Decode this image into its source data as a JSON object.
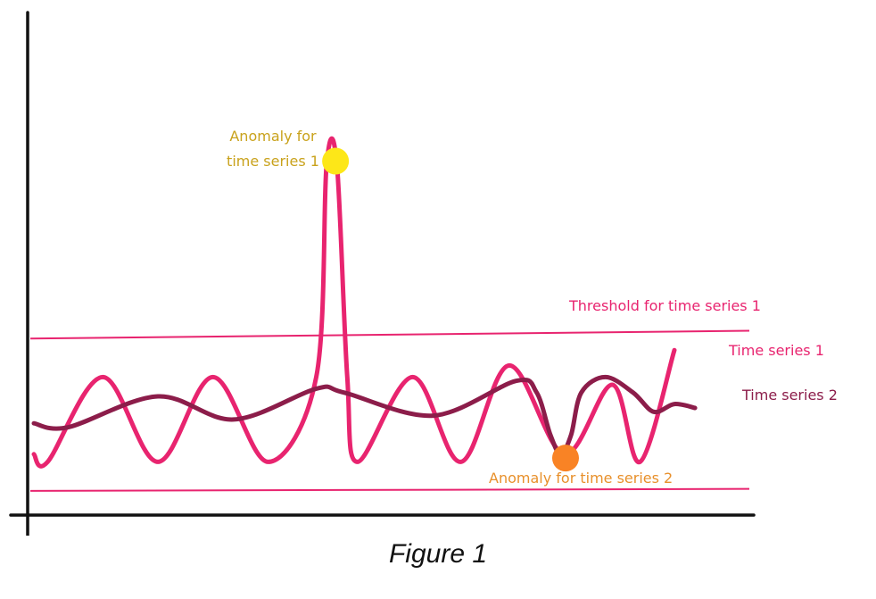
{
  "chart_data": {
    "type": "line",
    "title": "",
    "xlabel": "",
    "ylabel": "",
    "xlim": [
      0,
      100
    ],
    "ylim": [
      0,
      100
    ],
    "grid": false,
    "series": [
      {
        "name": "Time series 1",
        "color": "#e8246f",
        "x": [
          0,
          2,
          10,
          18,
          26,
          34,
          41,
          42.5,
          44,
          45.5,
          47,
          55,
          62,
          69,
          77,
          84,
          88,
          93
        ],
        "y": [
          10,
          8,
          30,
          8,
          30,
          8,
          30,
          85,
          85,
          30,
          8,
          30,
          8,
          33,
          10,
          28,
          8,
          37
        ]
      },
      {
        "name": "Time series 2",
        "color": "#8c1d4a",
        "x": [
          0,
          5,
          18,
          29,
          41,
          45,
          58,
          70,
          73,
          75,
          76.5,
          78,
          79.5,
          83,
          87,
          90,
          93,
          96
        ],
        "y": [
          18,
          17,
          25,
          19,
          27,
          26,
          20,
          29,
          26,
          15,
          10,
          15,
          26,
          30,
          26,
          21,
          23,
          22
        ]
      }
    ],
    "thresholds": [
      {
        "name": "Threshold for time series 1",
        "color": "#e8246f",
        "y": [
          40,
          42
        ]
      },
      {
        "name": "",
        "color": "#e8246f",
        "y": [
          0.5,
          1
        ]
      }
    ],
    "anomalies": [
      {
        "label": "Anomaly for time series 1",
        "label_line1": "Anomaly for",
        "label_line2": "time series 1",
        "color": "#fde718",
        "x": 43.8,
        "y": 86
      },
      {
        "label": "Anomaly for time series 2",
        "color": "#f98325",
        "x": 77.2,
        "y": 9
      }
    ],
    "annotations": {
      "threshold_label": "Threshold for time series 1",
      "series1_label": "Time series 1",
      "series2_label": "Time series 2",
      "anomaly1_line1": "Anomaly for",
      "anomaly1_line2": "time series 1",
      "anomaly2_label": "Anomaly for time series 2"
    },
    "label_colors": {
      "anomaly1": "#c9a21c",
      "anomaly2": "#e8902b",
      "threshold": "#e8246f",
      "series1": "#e8246f",
      "series2": "#8c1d4a"
    },
    "caption": "Figure 1"
  }
}
